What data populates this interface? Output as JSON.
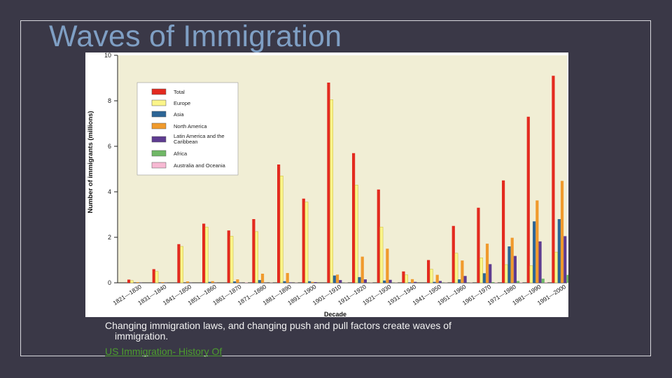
{
  "slide": {
    "title": "Waves of Immigration",
    "caption_line1": "Changing immigration laws, and changing push and pull factors create waves of",
    "caption_line2": "immigration.",
    "link_text": "US Immigration- History Of"
  },
  "chart_data": {
    "type": "bar",
    "title": "",
    "xlabel": "Decade",
    "ylabel": "Number of immigrants (millions)",
    "ylim": [
      0,
      10
    ],
    "yticks": [
      "0",
      "2",
      "4",
      "6",
      "8",
      "10"
    ],
    "legend_position": "top-left",
    "categories": [
      "1821—1830",
      "1831—1840",
      "1841—1850",
      "1851—1860",
      "1861—1870",
      "1871—1880",
      "1881—1890",
      "1891—1900",
      "1901—1910",
      "1911—1920",
      "1921—1930",
      "1931—1940",
      "1941—1950",
      "1951—1960",
      "1961—1970",
      "1971—1980",
      "1981—1990",
      "1991—2000"
    ],
    "series": [
      {
        "name": "Total",
        "color": "#e32a1f",
        "values": [
          0.14,
          0.6,
          1.7,
          2.6,
          2.3,
          2.8,
          5.2,
          3.7,
          8.8,
          5.7,
          4.1,
          0.5,
          1.0,
          2.5,
          3.3,
          4.5,
          7.3,
          9.1
        ]
      },
      {
        "name": "Europe",
        "color": "#fbf58a",
        "values": [
          0.1,
          0.5,
          1.6,
          2.45,
          2.05,
          2.25,
          4.7,
          3.55,
          8.05,
          4.3,
          2.45,
          0.35,
          0.6,
          1.3,
          1.1,
          0.8,
          0.75,
          1.35
        ]
      },
      {
        "name": "Asia",
        "color": "#2d6596",
        "values": [
          0,
          0,
          0,
          0.04,
          0.06,
          0.12,
          0.07,
          0.07,
          0.32,
          0.25,
          0.1,
          0.02,
          0.04,
          0.15,
          0.42,
          1.6,
          2.7,
          2.8
        ]
      },
      {
        "name": "North America",
        "color": "#f09a2c",
        "values": [
          0.03,
          0.03,
          0.06,
          0.07,
          0.15,
          0.4,
          0.43,
          0.04,
          0.36,
          1.15,
          1.5,
          0.16,
          0.35,
          0.98,
          1.72,
          1.98,
          3.62,
          4.48
        ]
      },
      {
        "name": "Latin America and the Caribbean",
        "color": "#5e3c91",
        "values": [
          0.01,
          0.01,
          0.01,
          0.01,
          0.01,
          0.01,
          0.02,
          0.03,
          0.12,
          0.15,
          0.13,
          0.04,
          0.08,
          0.3,
          0.82,
          1.18,
          1.82,
          2.05
        ]
      },
      {
        "name": "Africa",
        "color": "#70b866",
        "values": [
          0,
          0,
          0,
          0,
          0,
          0,
          0,
          0,
          0.01,
          0.01,
          0.01,
          0,
          0.01,
          0.01,
          0.03,
          0.08,
          0.18,
          0.35
        ]
      },
      {
        "name": "Australia and Oceania",
        "color": "#f7b9d3",
        "values": [
          0,
          0,
          0,
          0,
          0.02,
          0.01,
          0.01,
          0,
          0.01,
          0.01,
          0.01,
          0,
          0.01,
          0.01,
          0.02,
          0.02,
          0.03,
          0.05
        ]
      }
    ]
  }
}
